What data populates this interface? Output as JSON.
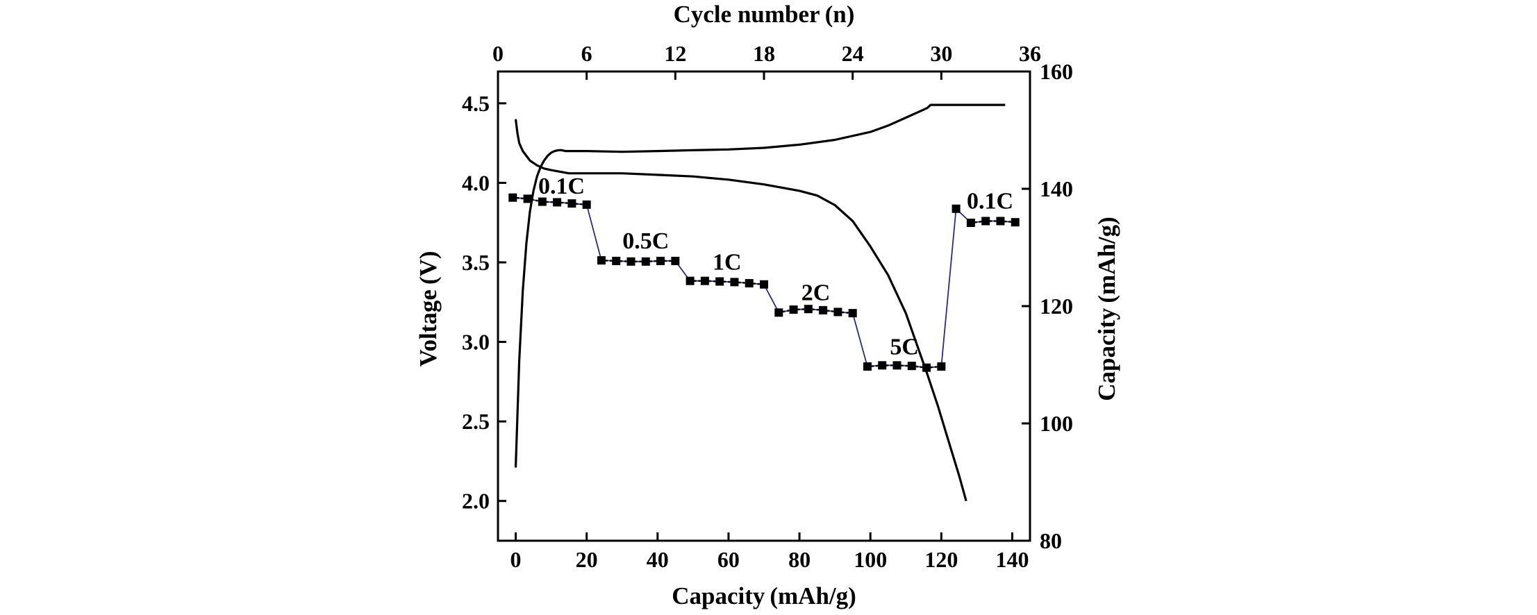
{
  "chart_data": {
    "type": "line",
    "axes": {
      "bottom": {
        "label": "Capacity (mAh/g)",
        "range": [
          -5,
          145
        ],
        "ticks": [
          "0",
          "20",
          "40",
          "60",
          "80",
          "100",
          "120",
          "140"
        ]
      },
      "left": {
        "label": "Voltage (V)",
        "range": [
          1.75,
          4.7
        ],
        "ticks": [
          "2.0",
          "2.5",
          "3.0",
          "3.5",
          "4.0",
          "4.5"
        ]
      },
      "top": {
        "label": "Cycle number (n)",
        "range": [
          0,
          36
        ],
        "ticks": [
          "0",
          "6",
          "12",
          "18",
          "24",
          "30",
          "36"
        ]
      },
      "right": {
        "label": "Capacity (mAh/g)",
        "range": [
          80,
          160
        ],
        "ticks": [
          "80",
          "100",
          "120",
          "140",
          "160"
        ]
      }
    },
    "grid": false,
    "series": [
      {
        "role": "charge",
        "axes": "bottom-left",
        "x": [
          0,
          0.5,
          1,
          2,
          3,
          4,
          5,
          6,
          7,
          8,
          9,
          10,
          11,
          12,
          13,
          14,
          16,
          20,
          30,
          40,
          50,
          60,
          70,
          80,
          90,
          100,
          105,
          110,
          114,
          116,
          117,
          130,
          138
        ],
        "y": [
          2.21,
          2.55,
          2.88,
          3.32,
          3.62,
          3.82,
          3.95,
          4.04,
          4.1,
          4.14,
          4.17,
          4.19,
          4.2,
          4.205,
          4.205,
          4.2,
          4.2,
          4.2,
          4.195,
          4.2,
          4.205,
          4.21,
          4.22,
          4.24,
          4.27,
          4.32,
          4.36,
          4.41,
          4.45,
          4.47,
          4.49,
          4.49,
          4.49
        ]
      },
      {
        "role": "discharge",
        "axes": "bottom-left",
        "x": [
          0,
          0.5,
          1,
          2,
          3,
          4,
          6,
          8,
          10,
          15,
          20,
          30,
          40,
          50,
          60,
          70,
          80,
          85,
          90,
          95,
          100,
          105,
          110,
          113,
          116,
          119,
          122,
          125,
          127
        ],
        "y": [
          4.4,
          4.31,
          4.25,
          4.2,
          4.17,
          4.14,
          4.11,
          4.09,
          4.08,
          4.06,
          4.06,
          4.06,
          4.05,
          4.04,
          4.02,
          3.99,
          3.95,
          3.92,
          3.86,
          3.76,
          3.6,
          3.42,
          3.18,
          2.99,
          2.8,
          2.6,
          2.38,
          2.16,
          2.0
        ]
      },
      {
        "role": "rate capability",
        "axes": "top-right",
        "x": [
          1,
          2,
          3,
          4,
          5,
          6,
          7,
          8,
          9,
          10,
          11,
          12,
          13,
          14,
          15,
          16,
          17,
          18,
          19,
          20,
          21,
          22,
          23,
          24,
          25,
          26,
          27,
          28,
          29,
          30,
          31,
          32,
          33,
          34,
          35
        ],
        "y": [
          138.5,
          138.3,
          137.8,
          137.7,
          137.5,
          137.3,
          127.8,
          127.7,
          127.6,
          127.6,
          127.7,
          127.7,
          124.3,
          124.3,
          124.2,
          124.1,
          123.9,
          123.7,
          118.9,
          119.4,
          119.5,
          119.3,
          119.0,
          118.8,
          109.7,
          109.9,
          109.9,
          109.8,
          109.5,
          109.7,
          136.6,
          134.2,
          134.5,
          134.5,
          134.3
        ]
      }
    ],
    "annotations": [
      {
        "text": "0.1C",
        "x": 4.3,
        "y": 139.2
      },
      {
        "text": "0.5C",
        "x": 10,
        "y": 129.8
      },
      {
        "text": "1C",
        "x": 15.5,
        "y": 126.2
      },
      {
        "text": "2C",
        "x": 21.5,
        "y": 121.0
      },
      {
        "text": "5C",
        "x": 27.5,
        "y": 111.8
      },
      {
        "text": "0.1C",
        "x": 33.3,
        "y": 136.6
      }
    ]
  }
}
